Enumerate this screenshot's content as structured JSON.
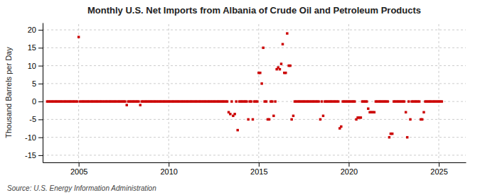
{
  "chart_data": {
    "type": "scatter",
    "title": "Monthly U.S. Net Imports from Albania of Crude Oil and Petroleum Products",
    "ylabel": "Thousand Barrels per Day",
    "annotations": [
      "Source: U.S. Energy Information Administration"
    ],
    "xlim": [
      2003.0,
      2026.5
    ],
    "ylim": [
      -17,
      22
    ],
    "xticks": [
      2005,
      2010,
      2015,
      2020,
      2025
    ],
    "yticks": [
      -15,
      -10,
      -5,
      0,
      5,
      10,
      15,
      20
    ],
    "grid": true,
    "marker": "square",
    "color": "#cc0000",
    "x": [
      2003.25,
      2003.33,
      2003.42,
      2003.5,
      2003.58,
      2003.67,
      2003.75,
      2003.83,
      2003.92,
      2004.0,
      2004.08,
      2004.17,
      2004.25,
      2004.33,
      2004.42,
      2004.5,
      2004.58,
      2004.67,
      2004.75,
      2004.83,
      2004.92,
      2005.0,
      2005.08,
      2005.17,
      2005.25,
      2005.33,
      2005.42,
      2005.5,
      2005.58,
      2005.67,
      2005.75,
      2005.83,
      2005.92,
      2006.0,
      2006.08,
      2006.17,
      2006.25,
      2006.33,
      2006.42,
      2006.5,
      2006.58,
      2006.67,
      2006.75,
      2006.83,
      2006.92,
      2007.0,
      2007.08,
      2007.17,
      2007.25,
      2007.33,
      2007.42,
      2007.5,
      2007.58,
      2007.67,
      2007.75,
      2007.83,
      2007.92,
      2008.0,
      2008.08,
      2008.17,
      2008.25,
      2008.33,
      2008.42,
      2008.5,
      2008.58,
      2008.67,
      2008.75,
      2008.83,
      2008.92,
      2009.0,
      2009.08,
      2009.17,
      2009.25,
      2009.33,
      2009.42,
      2009.5,
      2009.58,
      2009.67,
      2009.75,
      2009.83,
      2009.92,
      2010.0,
      2010.08,
      2010.17,
      2010.25,
      2010.33,
      2010.42,
      2010.5,
      2010.58,
      2010.67,
      2010.75,
      2010.83,
      2010.92,
      2011.0,
      2011.08,
      2011.17,
      2011.25,
      2011.33,
      2011.42,
      2011.5,
      2011.58,
      2011.67,
      2011.75,
      2011.83,
      2011.92,
      2012.0,
      2012.08,
      2012.17,
      2012.25,
      2012.33,
      2012.42,
      2012.5,
      2012.58,
      2012.67,
      2012.75,
      2012.83,
      2012.92,
      2013.0,
      2013.08,
      2013.17,
      2013.25,
      2013.33,
      2013.42,
      2013.5,
      2013.58,
      2013.67,
      2013.75,
      2013.83,
      2013.92,
      2014.0,
      2014.08,
      2014.17,
      2014.25,
      2014.33,
      2014.42,
      2014.5,
      2014.58,
      2014.67,
      2014.75,
      2014.83,
      2014.92,
      2015.0,
      2015.08,
      2015.17,
      2015.25,
      2015.33,
      2015.42,
      2015.5,
      2015.58,
      2015.67,
      2015.75,
      2015.83,
      2015.92,
      2016.0,
      2016.08,
      2016.17,
      2016.25,
      2016.33,
      2016.42,
      2016.5,
      2016.58,
      2016.67,
      2016.75,
      2016.83,
      2016.92,
      2017.0,
      2017.08,
      2017.17,
      2017.25,
      2017.33,
      2017.42,
      2017.5,
      2017.58,
      2017.67,
      2017.75,
      2017.83,
      2017.92,
      2018.0,
      2018.08,
      2018.17,
      2018.25,
      2018.33,
      2018.42,
      2018.5,
      2018.58,
      2018.67,
      2018.75,
      2018.83,
      2018.92,
      2019.0,
      2019.08,
      2019.17,
      2019.25,
      2019.33,
      2019.42,
      2019.5,
      2019.58,
      2019.67,
      2019.75,
      2019.83,
      2019.92,
      2020.0,
      2020.08,
      2020.17,
      2020.25,
      2020.33,
      2020.42,
      2020.5,
      2020.58,
      2020.67,
      2020.75,
      2020.83,
      2020.92,
      2021.0,
      2021.08,
      2021.17,
      2021.25,
      2021.33,
      2021.42,
      2021.5,
      2021.58,
      2021.67,
      2021.75,
      2021.83,
      2021.92,
      2022.0,
      2022.08,
      2022.17,
      2022.25,
      2022.33,
      2022.42,
      2022.5,
      2022.58,
      2022.67,
      2022.75,
      2022.83,
      2022.92,
      2023.0,
      2023.08,
      2023.17,
      2023.25,
      2023.33,
      2023.42,
      2023.5,
      2023.58,
      2023.67,
      2023.75,
      2023.83,
      2023.92,
      2024.0,
      2024.08,
      2024.17,
      2024.25,
      2024.33,
      2024.42,
      2024.5,
      2024.58,
      2024.67,
      2024.75,
      2024.83,
      2024.92,
      2025.0,
      2025.08,
      2025.17
    ],
    "values": [
      0,
      0,
      0,
      0,
      0,
      0,
      0,
      0,
      0,
      0,
      0,
      0,
      0,
      0,
      0,
      0,
      0,
      0,
      0,
      0,
      0,
      18,
      0,
      0,
      0,
      0,
      0,
      0,
      0,
      0,
      0,
      0,
      0,
      0,
      0,
      0,
      0,
      0,
      0,
      0,
      0,
      0,
      0,
      0,
      0,
      0,
      0,
      0,
      0,
      0,
      0,
      0,
      0,
      -1,
      0,
      0,
      0,
      0,
      0,
      0,
      0,
      0,
      -1,
      0,
      0,
      0,
      0,
      0,
      0,
      0,
      0,
      0,
      0,
      0,
      0,
      0,
      0,
      0,
      0,
      0,
      0,
      0,
      0,
      0,
      0,
      0,
      0,
      0,
      0,
      0,
      0,
      0,
      0,
      0,
      0,
      0,
      0,
      0,
      0,
      0,
      0,
      0,
      0,
      0,
      0,
      0,
      0,
      0,
      0,
      0,
      0,
      0,
      0,
      0,
      0,
      0,
      0,
      0,
      0,
      0,
      0,
      -3,
      -3.5,
      0,
      -4,
      -3.5,
      0,
      -8,
      0,
      0,
      0,
      0,
      0,
      0,
      -5,
      0,
      0,
      -5,
      0,
      0,
      0,
      8,
      8,
      5,
      15,
      0,
      0,
      -5,
      -5,
      0,
      0,
      -4,
      0,
      9,
      9.5,
      9,
      10.5,
      16,
      8,
      8,
      19,
      10,
      10,
      -5,
      -4,
      0,
      0,
      0,
      0,
      0,
      0,
      0,
      0,
      0,
      0,
      0,
      0,
      0,
      0,
      0,
      0,
      0,
      -5,
      0,
      -4,
      0,
      0,
      0,
      0,
      0,
      0,
      0,
      0,
      0,
      0,
      -7.5,
      -7,
      0,
      0,
      0,
      0,
      0,
      0,
      0,
      0,
      0,
      -5,
      -4.5,
      -4.5,
      -4.5,
      0,
      0,
      0,
      0,
      -2,
      -3,
      -3,
      -3,
      -3,
      0,
      0,
      0,
      0,
      0,
      0,
      0,
      0,
      0,
      -10,
      -9,
      -9,
      0,
      0,
      0,
      0,
      0,
      0,
      0,
      0,
      -3,
      -10,
      0,
      -5,
      0,
      0,
      0,
      0,
      0,
      0,
      -5,
      -5,
      -3,
      0,
      0,
      0,
      0,
      0,
      0,
      0,
      0,
      0,
      0,
      0,
      0
    ]
  }
}
